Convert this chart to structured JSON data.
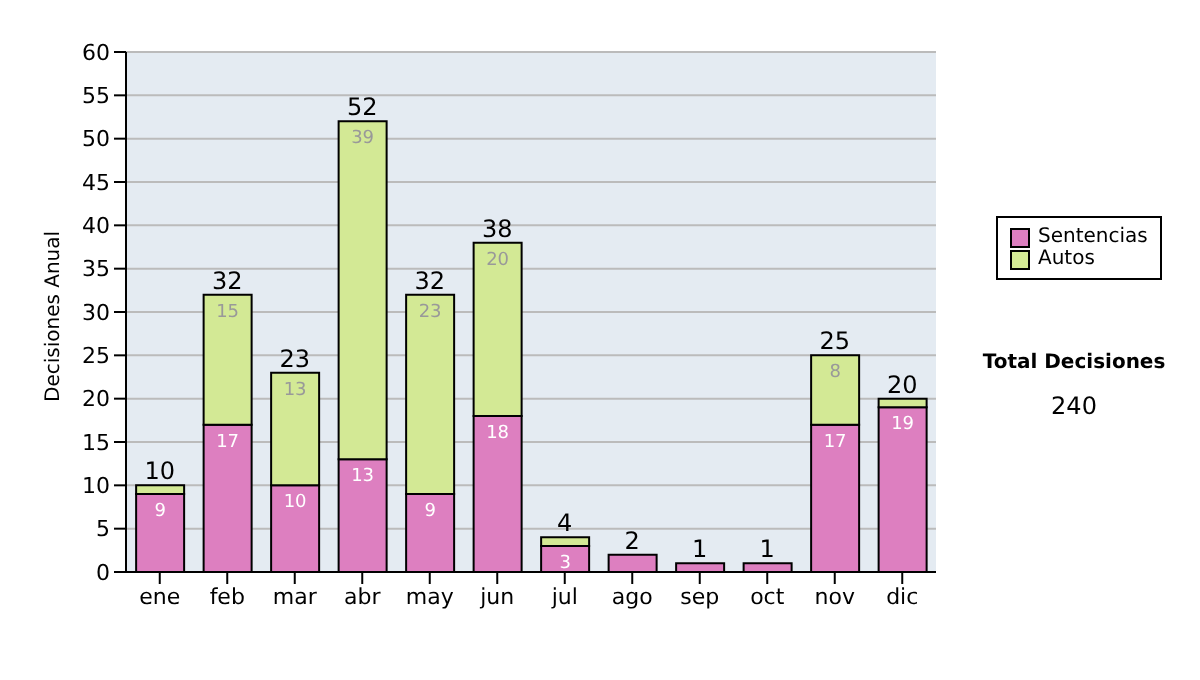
{
  "chart_data": {
    "type": "bar",
    "stacked": true,
    "ylabel": "Decisiones Anual",
    "categories": [
      "ene",
      "feb",
      "mar",
      "abr",
      "may",
      "jun",
      "jul",
      "ago",
      "sep",
      "oct",
      "nov",
      "dic"
    ],
    "series": [
      {
        "name": "Sentencias",
        "color": "#dd7fc0",
        "values": [
          9,
          17,
          10,
          13,
          9,
          18,
          3,
          2,
          1,
          1,
          17,
          19
        ],
        "value_labels": [
          "9",
          "17",
          "10",
          "13",
          "9",
          "18",
          "3",
          null,
          null,
          null,
          "17",
          "19"
        ]
      },
      {
        "name": "Autos",
        "color": "#d3e995",
        "values": [
          1,
          15,
          13,
          39,
          23,
          20,
          1,
          0,
          0,
          0,
          8,
          1
        ],
        "value_labels": [
          null,
          "15",
          "13",
          "39",
          "23",
          "20",
          null,
          null,
          null,
          null,
          "8",
          null
        ]
      }
    ],
    "totals": [
      "10",
      "32",
      "23",
      "52",
      "32",
      "38",
      "4",
      "2",
      "1",
      "1",
      "25",
      "20"
    ],
    "ylim": [
      0,
      60
    ],
    "yticks": [
      0,
      5,
      10,
      15,
      20,
      25,
      30,
      35,
      40,
      45,
      50,
      55,
      60
    ],
    "grid": "y",
    "legend": "right",
    "annotations": [
      "Total Decisiones",
      "240"
    ]
  }
}
